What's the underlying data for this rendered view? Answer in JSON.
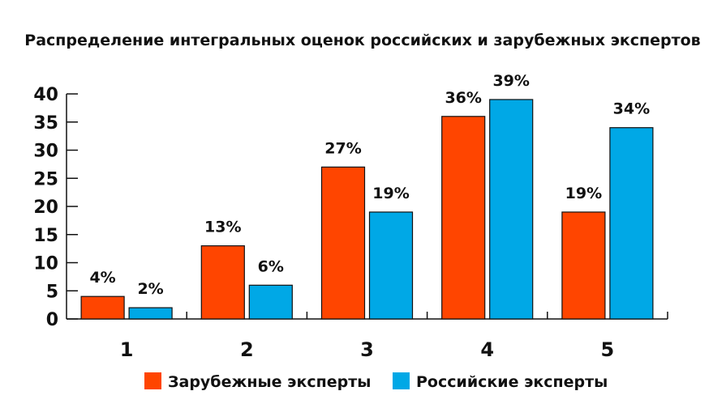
{
  "chart_data": {
    "type": "bar",
    "title": "Распределение интегральных оценок российских и зарубежных экспертов",
    "xlabel": "",
    "ylabel": "",
    "categories": [
      "1",
      "2",
      "3",
      "4",
      "5"
    ],
    "ylim": [
      0,
      40
    ],
    "yticks": [
      0,
      5,
      10,
      15,
      20,
      25,
      30,
      35,
      40
    ],
    "grid": false,
    "legend_position": "bottom",
    "series": [
      {
        "name": "Зарубежные эксперты",
        "color": "#ff4500",
        "values": [
          4,
          13,
          27,
          36,
          19
        ],
        "labels": [
          "4%",
          "13%",
          "27%",
          "36%",
          "19%"
        ]
      },
      {
        "name": "Российские эксперты",
        "color": "#00a8e6",
        "values": [
          2,
          6,
          19,
          39,
          34
        ],
        "labels": [
          "2%",
          "6%",
          "19%",
          "39%",
          "34%"
        ]
      }
    ]
  }
}
